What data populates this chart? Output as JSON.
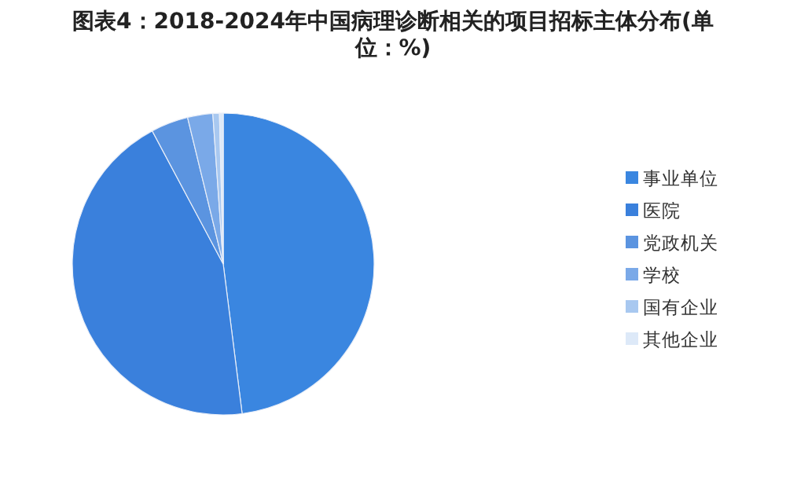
{
  "chart_data": {
    "type": "pie",
    "title": "图表4：2018-2024年中国病理诊断相关的项目招标主体分布(单位：%)",
    "categories": [
      "事业单位",
      "医院",
      "党政机关",
      "学校",
      "国有企业",
      "其他企业"
    ],
    "values": [
      48.0,
      44.2,
      4.0,
      2.7,
      0.7,
      0.4
    ],
    "colors": [
      "#3a86e0",
      "#3a80dc",
      "#5b94e0",
      "#7aa9e8",
      "#a8c8f0",
      "#dde9f8"
    ],
    "legend": "right"
  }
}
